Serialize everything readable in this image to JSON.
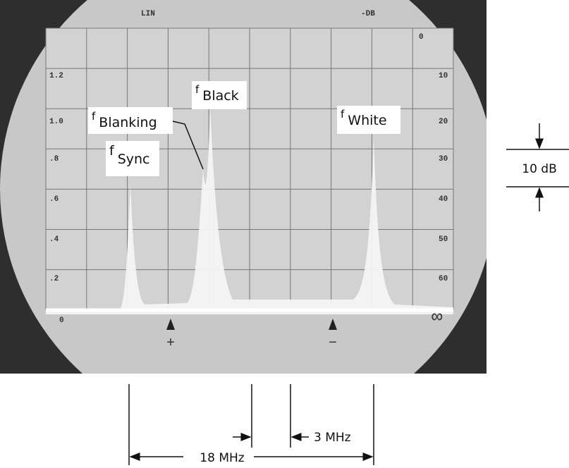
{
  "screen": {
    "mode_label": "LIN",
    "db_label": "-DB",
    "db_top": "0",
    "linear_scale": [
      "1.2",
      "1.0",
      ".8",
      ".6",
      ".4",
      ".2",
      "0"
    ],
    "db_scale": [
      "10",
      "20",
      "30",
      "40",
      "50",
      "60",
      "∞"
    ],
    "markers": [
      "+",
      "−"
    ]
  },
  "peaks": [
    {
      "symbol": "f",
      "name": "Sync"
    },
    {
      "symbol": "f",
      "name": "Blanking"
    },
    {
      "symbol": "f",
      "name": "Black"
    },
    {
      "symbol": "f",
      "name": "White"
    }
  ],
  "dimensions": {
    "level": "10 dB",
    "spacing": "3 MHz",
    "span": "18 MHz"
  }
}
